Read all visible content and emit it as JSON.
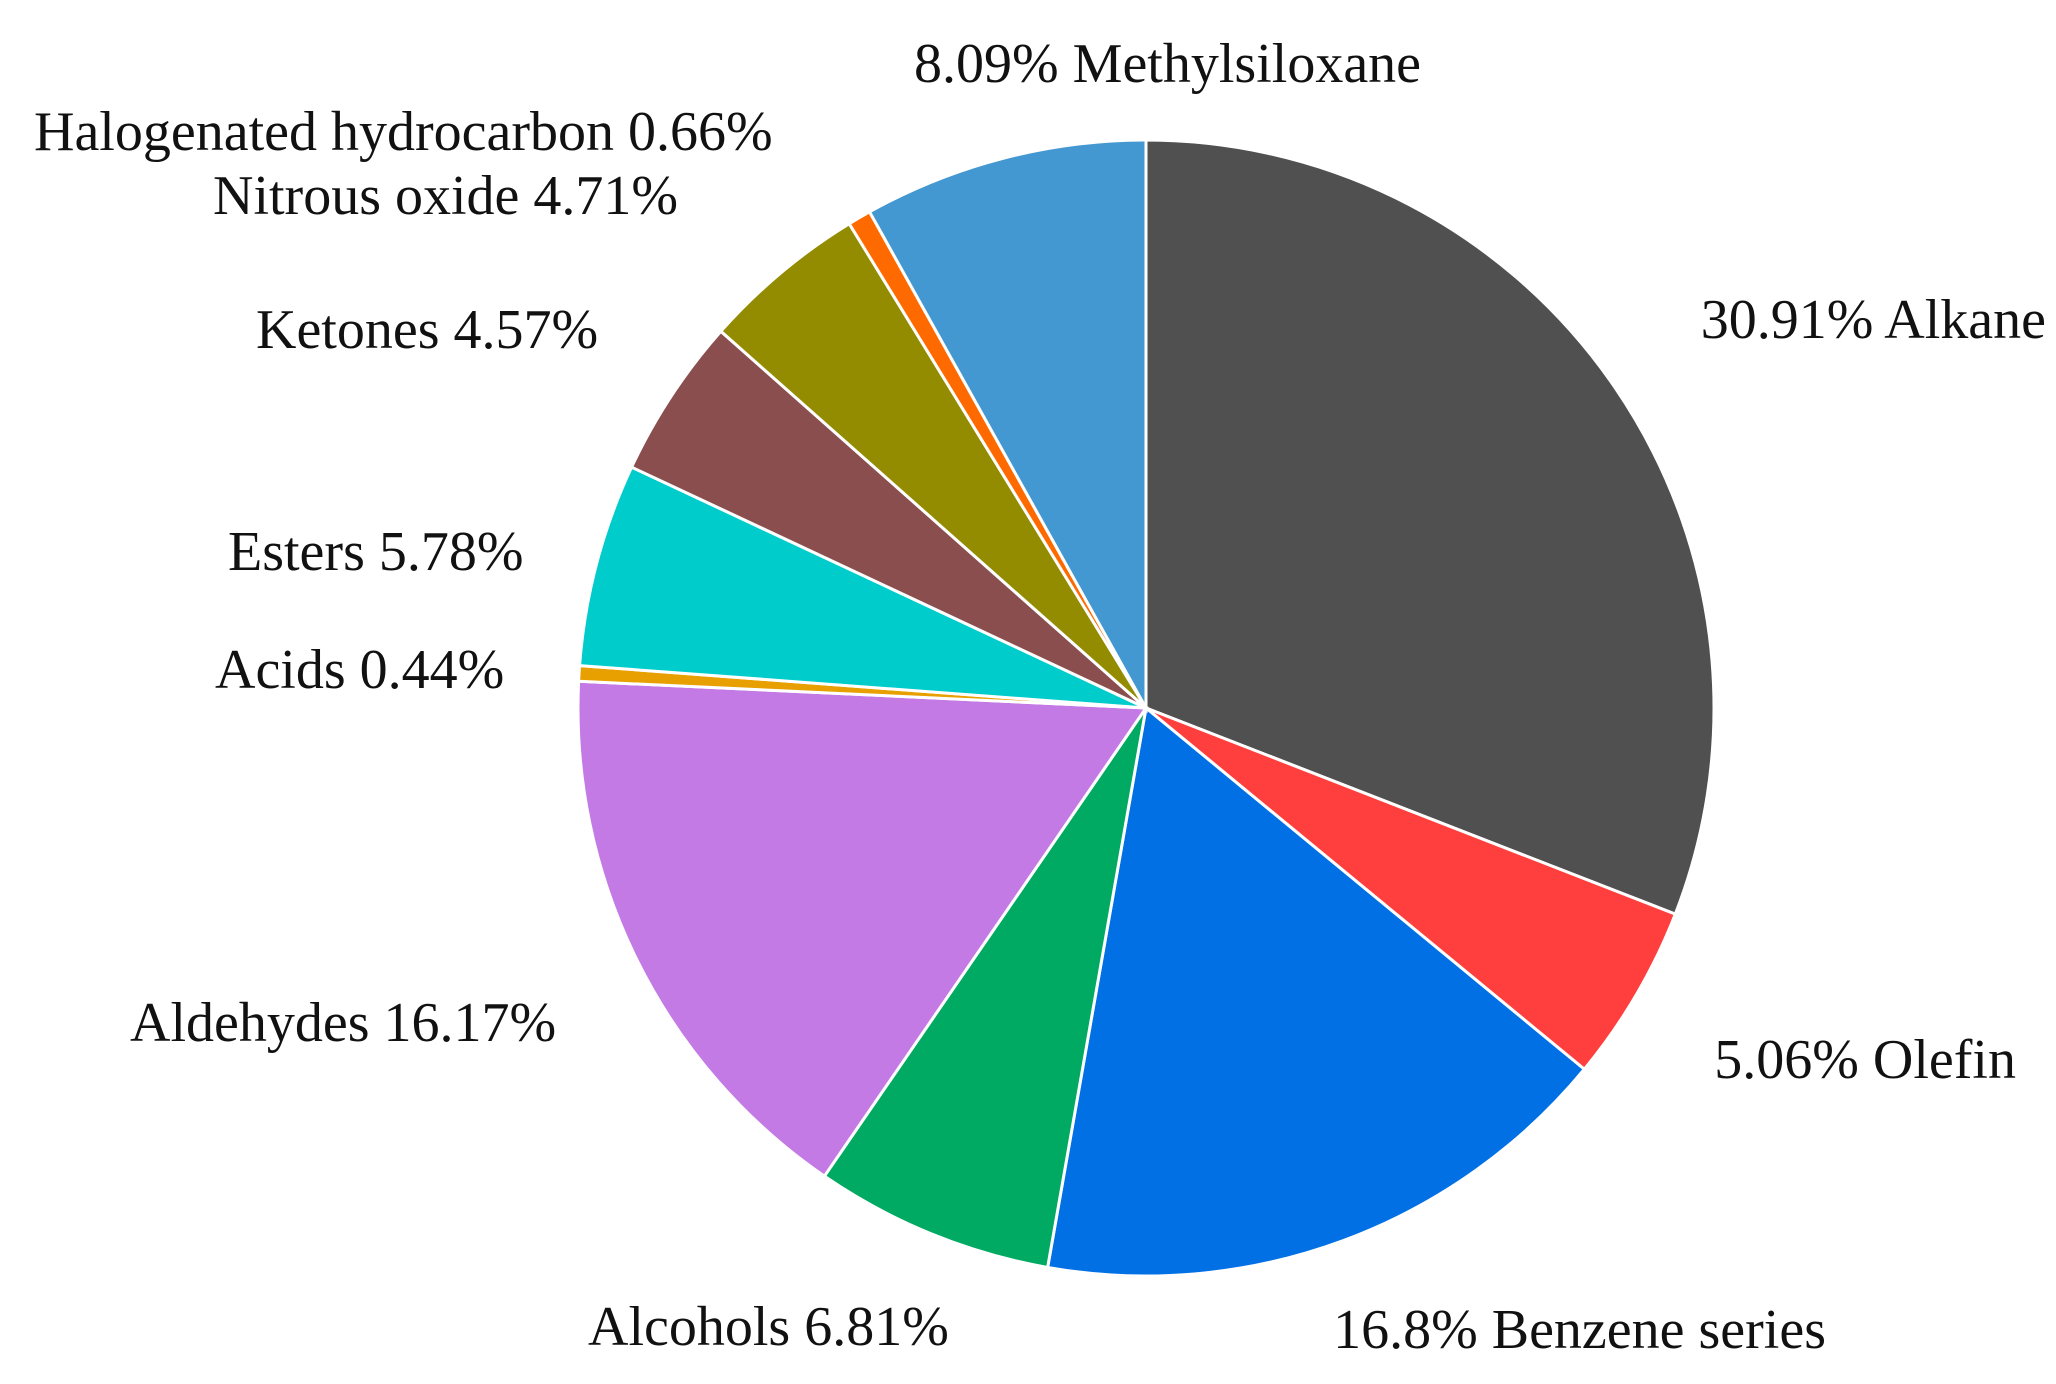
{
  "chart_data": {
    "type": "pie",
    "title": "",
    "slices": [
      {
        "name": "Alkane",
        "value": 30.91,
        "label": "30.91%  Alkane",
        "color": "#505050"
      },
      {
        "name": "Olefin",
        "value": 5.06,
        "label": "5.06%  Olefin",
        "color": "#FF3E3E"
      },
      {
        "name": "Benzene series",
        "value": 16.8,
        "label": "16.8%  Benzene series",
        "color": "#0070E4"
      },
      {
        "name": "Alcohols",
        "value": 6.81,
        "label": "Alcohols  6.81%",
        "color": "#00AA62"
      },
      {
        "name": "Aldehydes",
        "value": 16.17,
        "label": "Aldehydes 16.17%",
        "color": "#C47AE4"
      },
      {
        "name": "Acids",
        "value": 0.44,
        "label": "Acids 0.44%",
        "color": "#E8A000"
      },
      {
        "name": "Esters",
        "value": 5.78,
        "label": "Esters 5.78%",
        "color": "#00CCCC"
      },
      {
        "name": "Ketones",
        "value": 4.57,
        "label": "Ketones 4.57%",
        "color": "#8B4E4E"
      },
      {
        "name": "Nitrous oxide",
        "value": 4.71,
        "label": "Nitrous oxide   4.71%",
        "color": "#938B00"
      },
      {
        "name": "Halogenated hydrocarbon",
        "value": 0.66,
        "label": "Halogenated hydrocarbon 0.66%",
        "color": "#FF6A00"
      },
      {
        "name": "Methylsiloxane",
        "value": 8.09,
        "label": "8.09%  Methylsiloxane",
        "color": "#4498D2"
      }
    ],
    "start_angle": "12 o'clock",
    "direction": "clockwise",
    "legend": "none"
  }
}
